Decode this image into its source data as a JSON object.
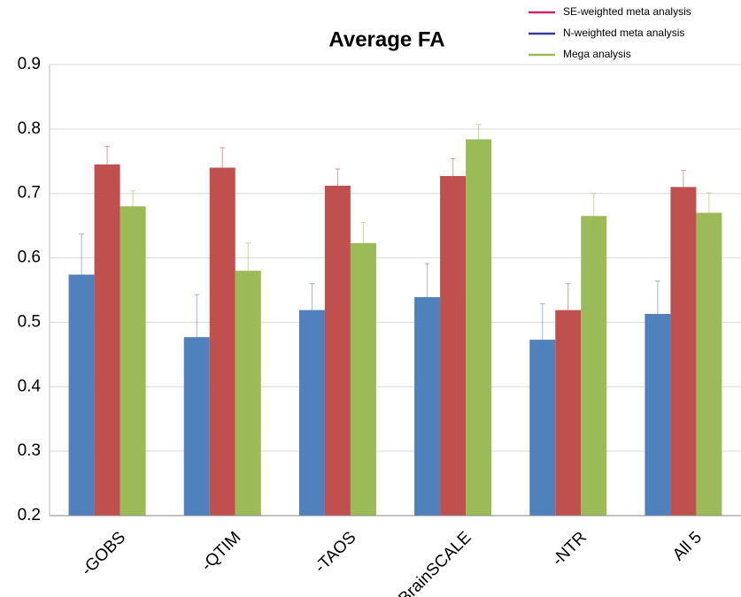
{
  "chart_data": {
    "type": "bar",
    "title": "Average FA",
    "categories": [
      "-GOBS",
      "-QTIM",
      "-TAOS",
      "-BrainSCALE",
      "-NTR",
      "All 5"
    ],
    "series": [
      {
        "name": "SE-weighted meta analysis",
        "color": "#4f81bd",
        "legend_color": "#d0246e",
        "values": [
          0.574,
          0.477,
          0.519,
          0.539,
          0.473,
          0.513
        ],
        "errors": [
          0.063,
          0.066,
          0.041,
          0.052,
          0.056,
          0.051
        ]
      },
      {
        "name": "N-weighted meta analysis",
        "color": "#c0504d",
        "legend_color": "#3a3a9c",
        "values": [
          0.745,
          0.74,
          0.712,
          0.727,
          0.519,
          0.71
        ],
        "errors": [
          0.028,
          0.031,
          0.026,
          0.027,
          0.041,
          0.026
        ]
      },
      {
        "name": "Mega analysis",
        "color": "#9bbb59",
        "legend_color": "#9bbb59",
        "values": [
          0.68,
          0.58,
          0.623,
          0.784,
          0.665,
          0.67
        ],
        "errors": [
          0.024,
          0.043,
          0.032,
          0.023,
          0.035,
          0.031
        ]
      }
    ],
    "ylim": [
      0.2,
      0.9
    ],
    "yticks": [
      0.2,
      0.3,
      0.4,
      0.5,
      0.6,
      0.7,
      0.8,
      0.9
    ],
    "grid": true
  }
}
